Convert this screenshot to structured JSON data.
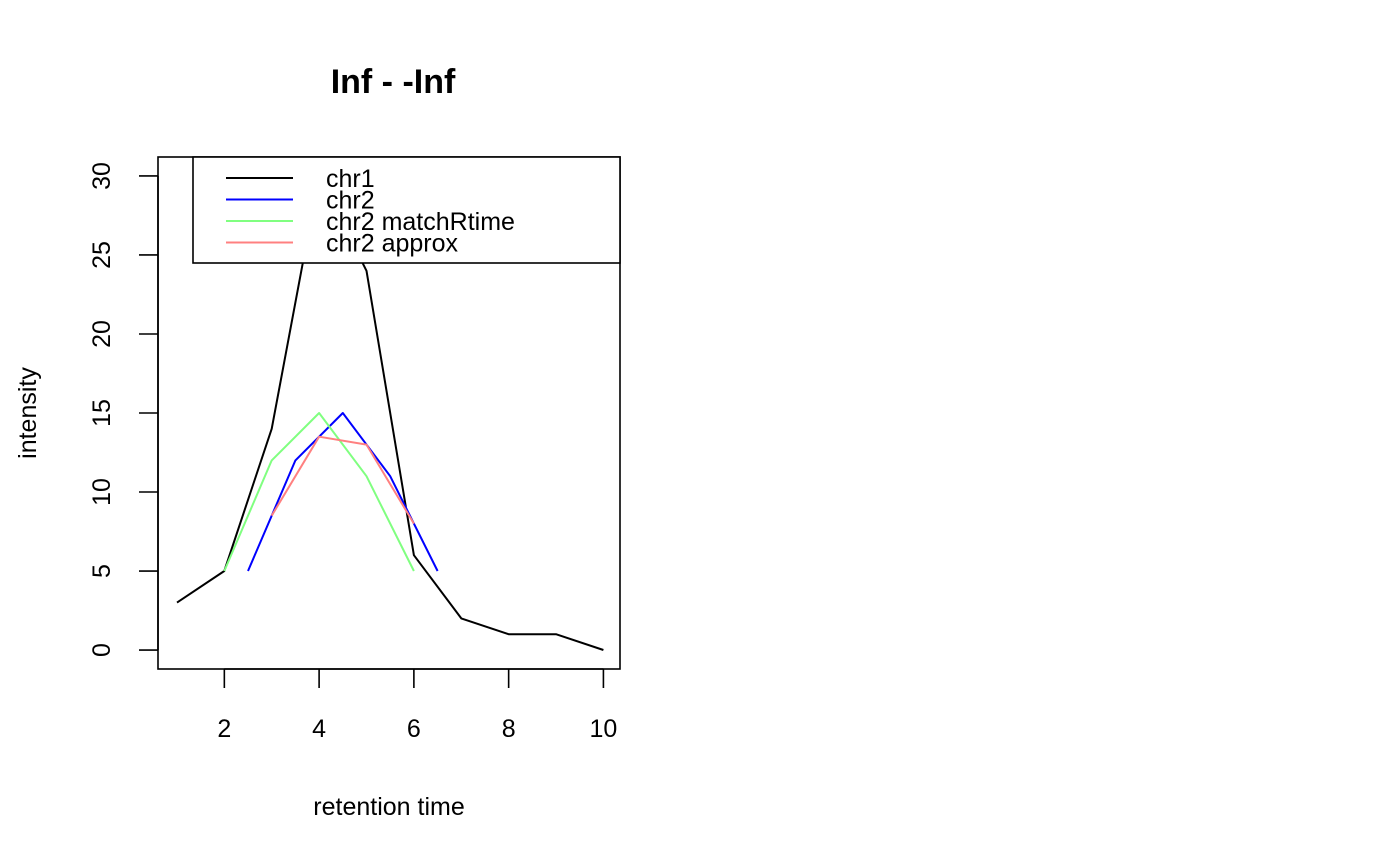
{
  "chart_data": {
    "type": "line",
    "title": "Inf - -Inf",
    "xlabel": "retention time",
    "ylabel": "intensity",
    "xlim": [
      0.6,
      10.35
    ],
    "ylim": [
      -1.2,
      31.2
    ],
    "x_ticks": [
      2,
      4,
      6,
      8,
      10
    ],
    "y_ticks": [
      0,
      5,
      10,
      15,
      20,
      25,
      30
    ],
    "grid": false,
    "legend_position": "top-right",
    "series": [
      {
        "name": "chr1",
        "color": "#000000",
        "x": [
          1,
          2,
          3,
          4,
          5,
          6,
          7,
          8,
          9,
          10
        ],
        "y": [
          3,
          5,
          14,
          30,
          24,
          6,
          2,
          1,
          1,
          0
        ]
      },
      {
        "name": "chr2",
        "color": "#0000ff",
        "x": [
          2.5,
          3.5,
          4.5,
          5.5,
          6.5
        ],
        "y": [
          5,
          12,
          15,
          11,
          5
        ]
      },
      {
        "name": "chr2 matchRtime",
        "color": "#80ff80",
        "x": [
          2,
          3,
          4,
          5,
          6
        ],
        "y": [
          5,
          12,
          15,
          11,
          5
        ]
      },
      {
        "name": "chr2 approx",
        "color": "#ff8080",
        "x": [
          3,
          4,
          5,
          6
        ],
        "y": [
          8.5,
          13.5,
          13,
          8
        ]
      }
    ]
  }
}
